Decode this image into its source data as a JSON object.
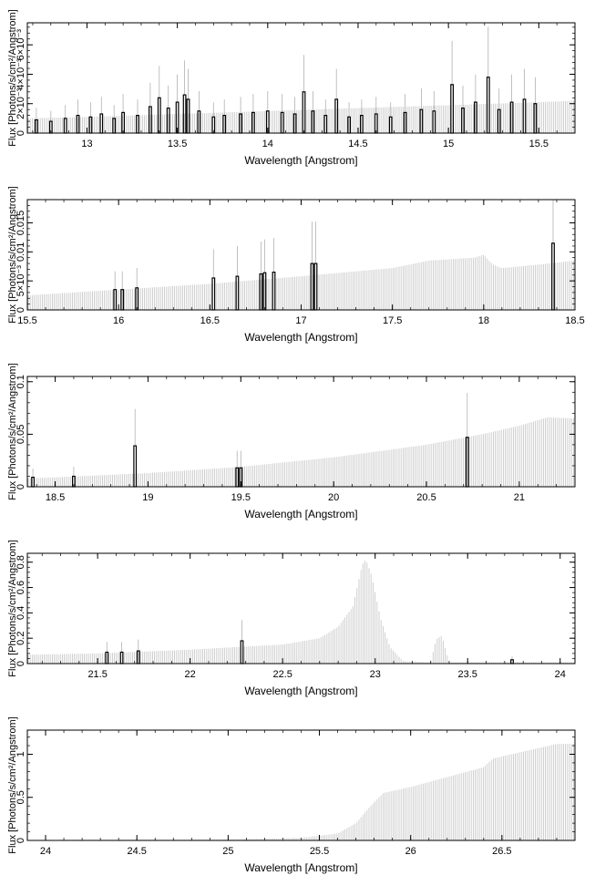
{
  "colors": {
    "data": "#000000",
    "model": "#c8c8c8",
    "axis": "#000000"
  },
  "chart_data": [
    {
      "type": "bar",
      "xlabel": "Wavelength [Angstrom]",
      "ylabel": "Flux [Photons/s/cm²/Angstrom]",
      "xlim": [
        12.67,
        15.7
      ],
      "ylim": [
        0,
        0.0075
      ],
      "x_ticks": [
        {
          "v": 13,
          "t": "13"
        },
        {
          "v": 13.5,
          "t": "13.5"
        },
        {
          "v": 14,
          "t": "14"
        },
        {
          "v": 14.5,
          "t": "14.5"
        },
        {
          "v": 15,
          "t": "15"
        },
        {
          "v": 15.5,
          "t": "15.5"
        }
      ],
      "y_ticks": [
        {
          "v": 0,
          "t": "0"
        },
        {
          "v": 0.002,
          "t": "2×10⁻³"
        },
        {
          "v": 0.004,
          "t": "4×10⁻³"
        },
        {
          "v": 0.006,
          "t": "6×10⁻³"
        }
      ],
      "model": [
        [
          12.67,
          0.001
        ],
        [
          13.0,
          0.0011
        ],
        [
          13.5,
          0.0013
        ],
        [
          14.0,
          0.0015
        ],
        [
          14.5,
          0.0017
        ],
        [
          15.0,
          0.0019
        ],
        [
          15.5,
          0.0021
        ],
        [
          15.7,
          0.0022
        ]
      ],
      "series": [
        {
          "name": "data",
          "points": [
            [
              12.72,
              0.0009
            ],
            [
              12.8,
              0.0008
            ],
            [
              12.88,
              0.001
            ],
            [
              12.95,
              0.0012
            ],
            [
              13.02,
              0.0011
            ],
            [
              13.08,
              0.0013
            ],
            [
              13.15,
              0.001
            ],
            [
              13.2,
              0.0014
            ],
            [
              13.28,
              0.0012
            ],
            [
              13.35,
              0.0018
            ],
            [
              13.4,
              0.0024
            ],
            [
              13.45,
              0.0017
            ],
            [
              13.5,
              0.0021
            ],
            [
              13.54,
              0.0026
            ],
            [
              13.56,
              0.0023
            ],
            [
              13.62,
              0.0015
            ],
            [
              13.7,
              0.0011
            ],
            [
              13.76,
              0.0012
            ],
            [
              13.85,
              0.0013
            ],
            [
              13.92,
              0.0014
            ],
            [
              14.0,
              0.0015
            ],
            [
              14.08,
              0.0014
            ],
            [
              14.15,
              0.0013
            ],
            [
              14.2,
              0.0028
            ],
            [
              14.25,
              0.0015
            ],
            [
              14.32,
              0.0012
            ],
            [
              14.38,
              0.0023
            ],
            [
              14.45,
              0.0011
            ],
            [
              14.52,
              0.0012
            ],
            [
              14.6,
              0.0013
            ],
            [
              14.68,
              0.0011
            ],
            [
              14.76,
              0.0014
            ],
            [
              14.85,
              0.0016
            ],
            [
              14.92,
              0.0015
            ],
            [
              15.02,
              0.0033
            ],
            [
              15.08,
              0.0017
            ],
            [
              15.15,
              0.0021
            ],
            [
              15.22,
              0.0038
            ],
            [
              15.28,
              0.0016
            ],
            [
              15.35,
              0.0021
            ],
            [
              15.42,
              0.0023
            ],
            [
              15.48,
              0.002
            ]
          ]
        }
      ]
    },
    {
      "type": "bar",
      "xlabel": "Wavelength [Angstrom]",
      "ylabel": "Flux [Photons/s/cm²/Angstrom]",
      "xlim": [
        15.5,
        18.5
      ],
      "ylim": [
        0,
        0.019
      ],
      "x_ticks": [
        {
          "v": 15.5,
          "t": "15.5"
        },
        {
          "v": 16,
          "t": "16"
        },
        {
          "v": 16.5,
          "t": "16.5"
        },
        {
          "v": 17,
          "t": "17"
        },
        {
          "v": 17.5,
          "t": "17.5"
        },
        {
          "v": 18,
          "t": "18"
        },
        {
          "v": 18.5,
          "t": "18.5"
        }
      ],
      "y_ticks": [
        {
          "v": 0,
          "t": "0"
        },
        {
          "v": 0.005,
          "t": "5×10⁻³"
        },
        {
          "v": 0.01,
          "t": "0.01"
        },
        {
          "v": 0.015,
          "t": "0.015"
        }
      ],
      "model": [
        [
          15.5,
          0.0025
        ],
        [
          16.0,
          0.0035
        ],
        [
          16.5,
          0.0045
        ],
        [
          17.0,
          0.0058
        ],
        [
          17.5,
          0.0072
        ],
        [
          17.7,
          0.0085
        ],
        [
          17.95,
          0.009
        ],
        [
          18.0,
          0.0095
        ],
        [
          18.05,
          0.0078
        ],
        [
          18.1,
          0.0072
        ],
        [
          18.3,
          0.0078
        ],
        [
          18.5,
          0.0085
        ]
      ],
      "series": [
        {
          "name": "data",
          "points": [
            [
              15.98,
              0.0035
            ],
            [
              16.02,
              0.0035
            ],
            [
              16.1,
              0.0038
            ],
            [
              16.52,
              0.0055
            ],
            [
              16.65,
              0.0058
            ],
            [
              16.78,
              0.0062
            ],
            [
              16.8,
              0.0064
            ],
            [
              16.85,
              0.0065
            ],
            [
              17.06,
              0.008
            ],
            [
              17.08,
              0.008
            ],
            [
              18.38,
              0.0115
            ]
          ]
        }
      ]
    },
    {
      "type": "bar",
      "xlabel": "Wavelength [Angstrom]",
      "ylabel": "Flux [Photons/s/cm²/Angstrom]",
      "xlim": [
        18.35,
        21.3
      ],
      "ylim": [
        0,
        0.105
      ],
      "x_ticks": [
        {
          "v": 18.5,
          "t": "18.5"
        },
        {
          "v": 19,
          "t": "19"
        },
        {
          "v": 19.5,
          "t": "19.5"
        },
        {
          "v": 20,
          "t": "20"
        },
        {
          "v": 20.5,
          "t": "20.5"
        },
        {
          "v": 21,
          "t": "21"
        }
      ],
      "y_ticks": [
        {
          "v": 0,
          "t": "0"
        },
        {
          "v": 0.05,
          "t": "0.05"
        },
        {
          "v": 0.1,
          "t": "0.1"
        }
      ],
      "model": [
        [
          18.35,
          0.008
        ],
        [
          18.5,
          0.009
        ],
        [
          19.0,
          0.013
        ],
        [
          19.5,
          0.019
        ],
        [
          20.0,
          0.028
        ],
        [
          20.5,
          0.04
        ],
        [
          20.8,
          0.05
        ],
        [
          21.0,
          0.058
        ],
        [
          21.15,
          0.066
        ],
        [
          21.3,
          0.065
        ]
      ],
      "series": [
        {
          "name": "data",
          "points": [
            [
              18.38,
              0.009
            ],
            [
              18.6,
              0.01
            ],
            [
              18.93,
              0.039
            ],
            [
              19.48,
              0.018
            ],
            [
              19.5,
              0.018
            ],
            [
              20.72,
              0.047
            ]
          ]
        }
      ]
    },
    {
      "type": "bar",
      "xlabel": "Wavelength [Angstrom]",
      "ylabel": "Flux [Photons/s/cm²/Angstrom]",
      "xlim": [
        21.12,
        24.08
      ],
      "ylim": [
        0,
        0.87
      ],
      "x_ticks": [
        {
          "v": 21.5,
          "t": "21.5"
        },
        {
          "v": 22,
          "t": "22"
        },
        {
          "v": 22.5,
          "t": "22.5"
        },
        {
          "v": 23,
          "t": "23"
        },
        {
          "v": 23.5,
          "t": "23.5"
        },
        {
          "v": 24,
          "t": "24"
        }
      ],
      "y_ticks": [
        {
          "v": 0,
          "t": "0"
        },
        {
          "v": 0.2,
          "t": "0.2"
        },
        {
          "v": 0.4,
          "t": "0.4"
        },
        {
          "v": 0.6,
          "t": "0.6"
        },
        {
          "v": 0.8,
          "t": "0.8"
        }
      ],
      "model": [
        [
          21.12,
          0.07
        ],
        [
          21.5,
          0.08
        ],
        [
          22.0,
          0.11
        ],
        [
          22.5,
          0.15
        ],
        [
          22.7,
          0.2
        ],
        [
          22.8,
          0.29
        ],
        [
          22.88,
          0.45
        ],
        [
          22.93,
          0.78
        ],
        [
          22.95,
          0.82
        ],
        [
          22.98,
          0.7
        ],
        [
          23.03,
          0.35
        ],
        [
          23.08,
          0.13
        ],
        [
          23.15,
          0.02
        ],
        [
          23.3,
          0.01
        ],
        [
          23.33,
          0.19
        ],
        [
          23.36,
          0.22
        ],
        [
          23.4,
          0.01
        ],
        [
          24.08,
          0.01
        ]
      ],
      "series": [
        {
          "name": "data",
          "points": [
            [
              21.55,
              0.09
            ],
            [
              21.63,
              0.09
            ],
            [
              21.72,
              0.1
            ],
            [
              22.28,
              0.18
            ],
            [
              23.74,
              0.03
            ]
          ]
        }
      ]
    },
    {
      "type": "bar",
      "xlabel": "Wavelength [Angstrom]",
      "ylabel": "Flux [Photons/s/cm²/Angstrom]",
      "xlim": [
        23.9,
        26.9
      ],
      "ylim": [
        0,
        1.28
      ],
      "x_ticks": [
        {
          "v": 24,
          "t": "24"
        },
        {
          "v": 24.5,
          "t": "24.5"
        },
        {
          "v": 25,
          "t": "25"
        },
        {
          "v": 25.5,
          "t": "25.5"
        },
        {
          "v": 26,
          "t": "26"
        },
        {
          "v": 26.5,
          "t": "26.5"
        }
      ],
      "y_ticks": [
        {
          "v": 0,
          "t": "0"
        },
        {
          "v": 0.5,
          "t": "0.5"
        },
        {
          "v": 1,
          "t": "1"
        }
      ],
      "model": [
        [
          23.9,
          0.005
        ],
        [
          25.0,
          0.01
        ],
        [
          25.4,
          0.03
        ],
        [
          25.6,
          0.08
        ],
        [
          25.7,
          0.2
        ],
        [
          25.78,
          0.4
        ],
        [
          25.85,
          0.55
        ],
        [
          26.0,
          0.62
        ],
        [
          26.4,
          0.85
        ],
        [
          26.45,
          0.95
        ],
        [
          26.8,
          1.12
        ],
        [
          26.9,
          1.12
        ]
      ],
      "series": []
    }
  ]
}
